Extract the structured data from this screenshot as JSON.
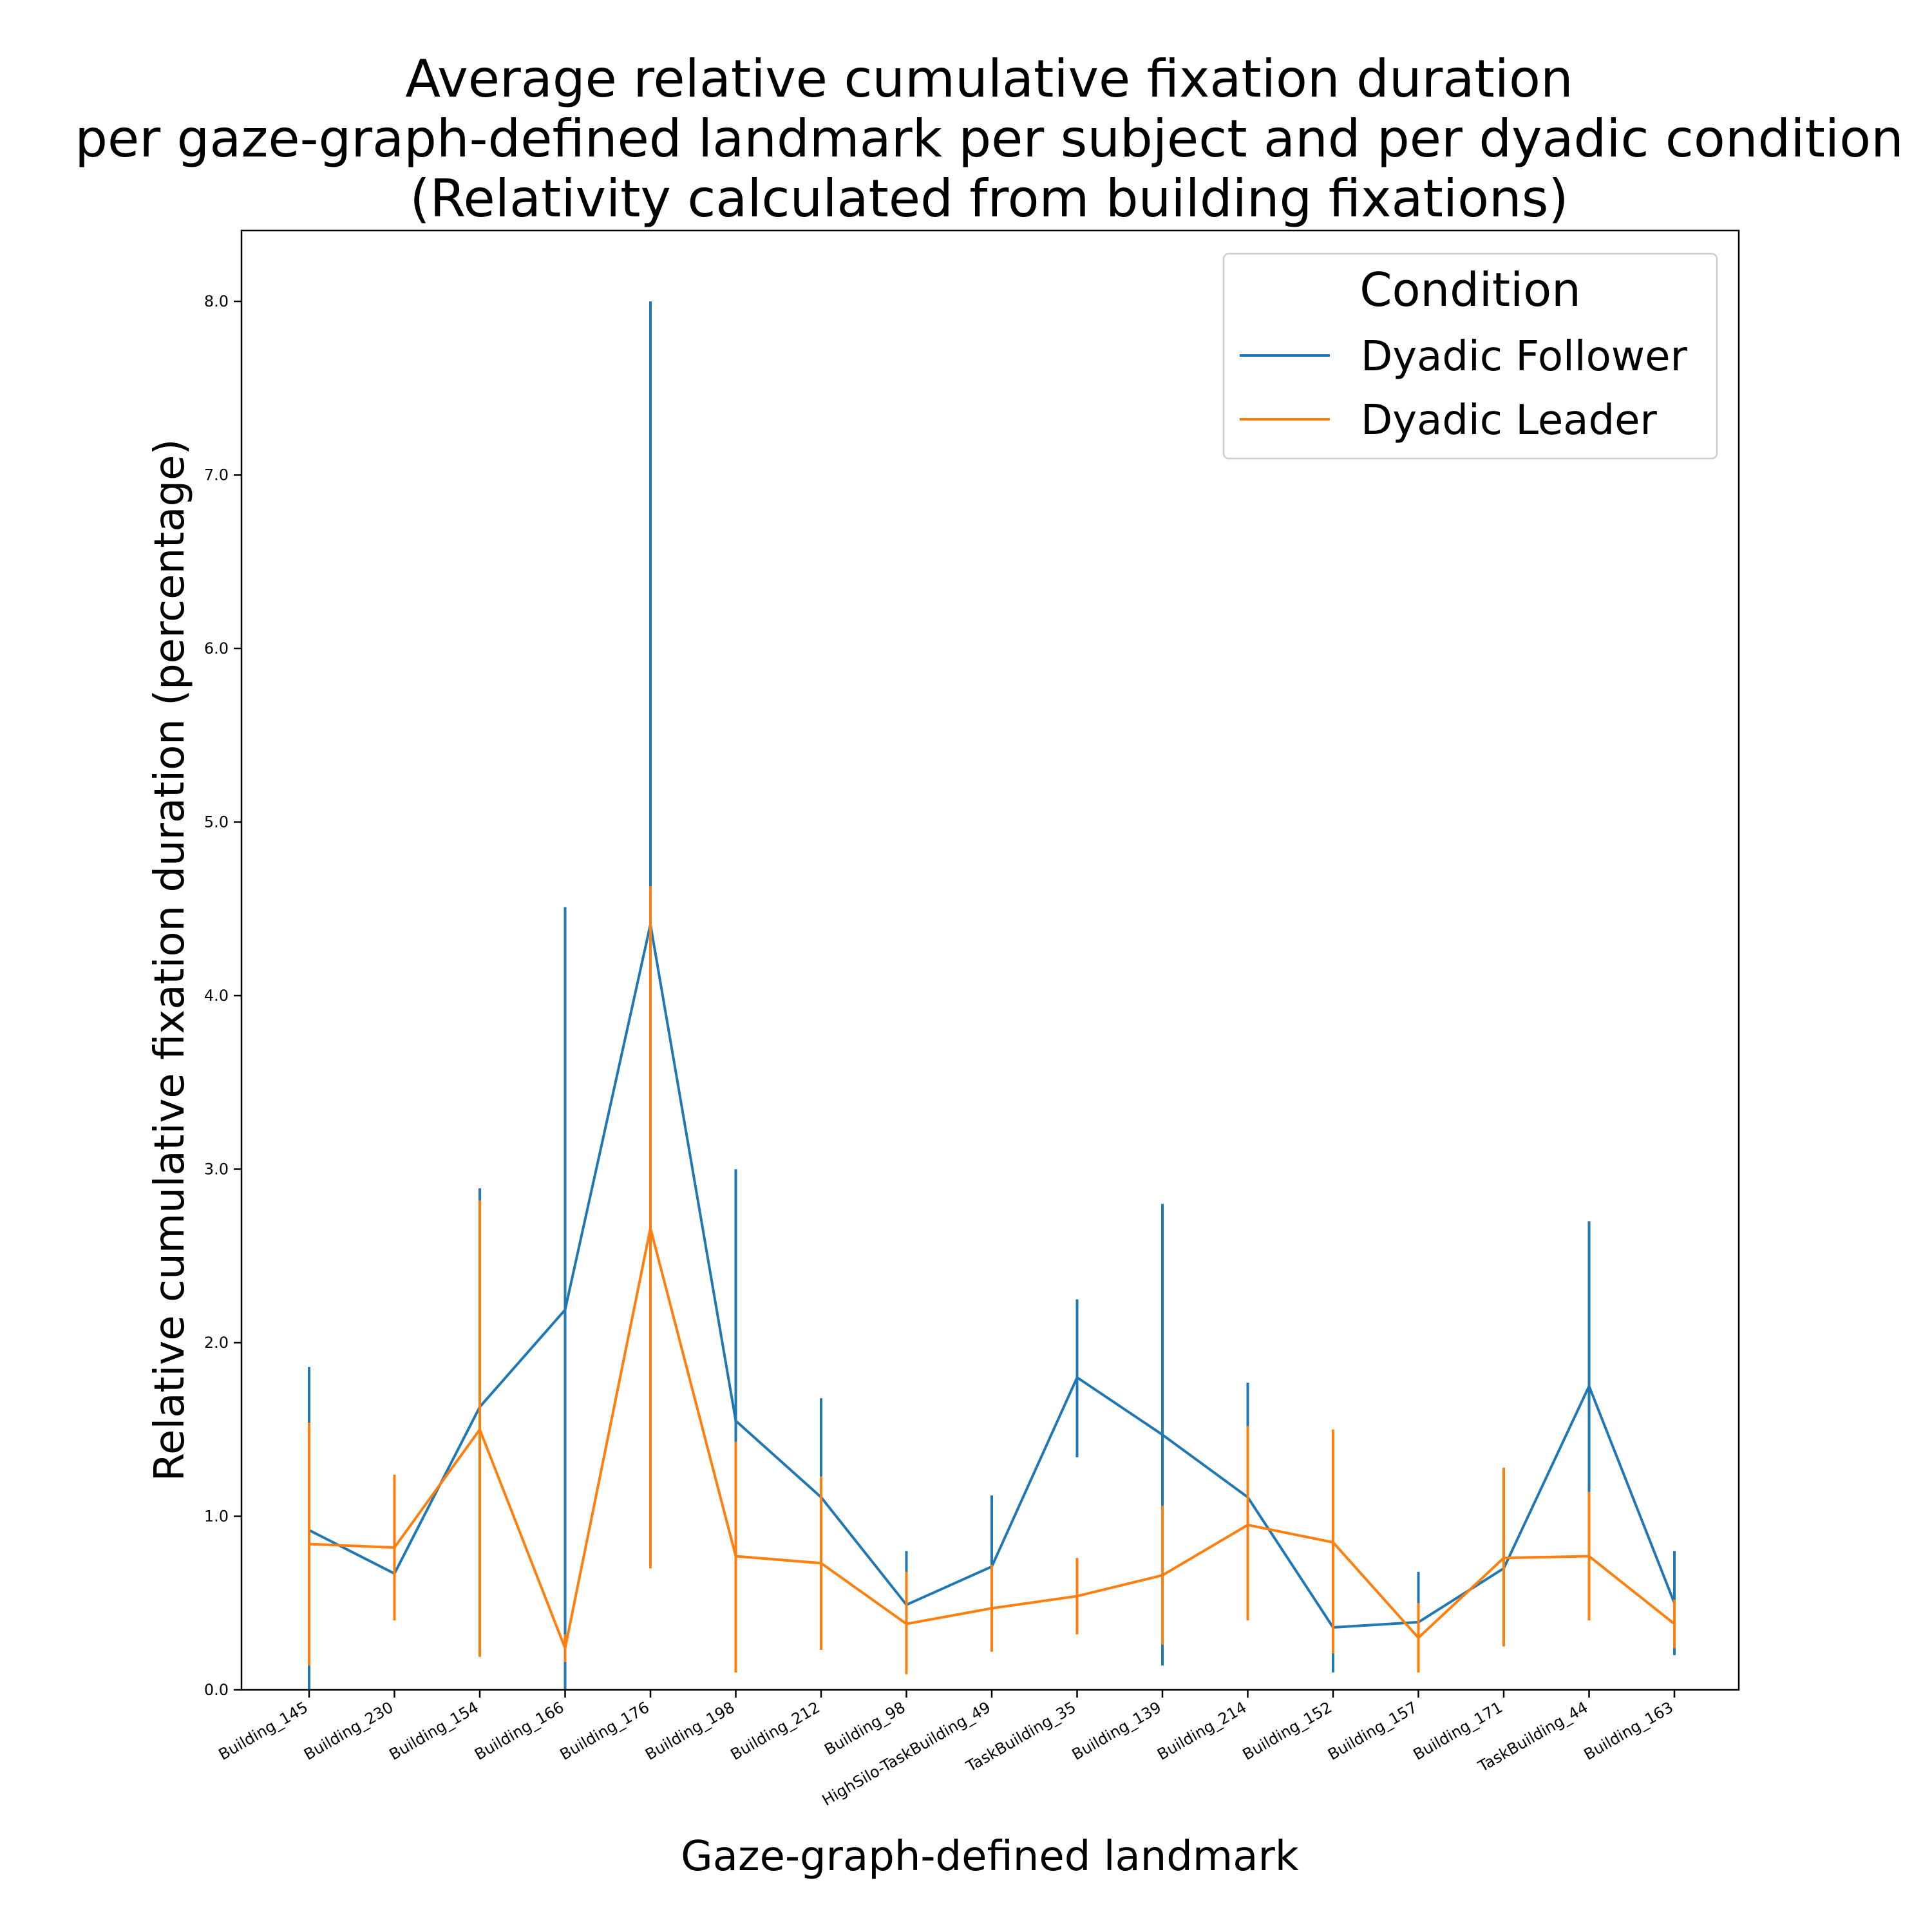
{
  "chart_data": {
    "type": "line",
    "title": [
      "Average relative cumulative fixation duration",
      "per gaze-graph-defined landmark per subject and per dyadic condition",
      "(Relativity calculated from building fixations)"
    ],
    "xlabel": "Gaze-graph-defined landmark",
    "ylabel": "Relative cumulative fixation duration (percentage)",
    "ylim": [
      0,
      8.4
    ],
    "yticks": [
      0.0,
      1.0,
      2.0,
      3.0,
      4.0,
      5.0,
      6.0,
      7.0,
      8.0
    ],
    "ytick_labels": [
      "0.0",
      "1.0",
      "2.0",
      "3.0",
      "4.0",
      "5.0",
      "6.0",
      "7.0",
      "8.0"
    ],
    "grid": false,
    "legend": {
      "title": "Condition",
      "position": "top-right"
    },
    "categories": [
      "Building_145",
      "Building_230",
      "Building_154",
      "Building_166",
      "Building_176",
      "Building_198",
      "Building_212",
      "Building_98",
      "HighSilo-TaskBuilding_49",
      "TaskBuilding_35",
      "Building_139",
      "Building_214",
      "Building_152",
      "Building_157",
      "Building_171",
      "TaskBuilding_44",
      "Building_163"
    ],
    "series": [
      {
        "name": "Dyadic Follower",
        "color": "#1f77b4",
        "values": [
          0.92,
          0.67,
          1.63,
          2.19,
          4.41,
          1.55,
          1.11,
          0.49,
          0.71,
          1.8,
          1.47,
          1.11,
          0.36,
          0.39,
          0.7,
          1.75,
          0.5
        ],
        "error_low": [
          0.0,
          0.67,
          0.38,
          0.0,
          0.8,
          0.1,
          0.55,
          0.2,
          0.3,
          1.34,
          0.14,
          0.45,
          0.1,
          0.1,
          0.4,
          0.85,
          0.2
        ],
        "error_high": [
          1.86,
          0.67,
          2.89,
          4.51,
          8.0,
          3.0,
          1.68,
          0.8,
          1.12,
          2.25,
          2.8,
          1.77,
          0.62,
          0.68,
          1.0,
          2.7,
          0.8
        ]
      },
      {
        "name": "Dyadic Leader",
        "color": "#ff7f0e",
        "values": [
          0.84,
          0.82,
          1.5,
          0.24,
          2.66,
          0.77,
          0.73,
          0.38,
          0.47,
          0.54,
          0.66,
          0.95,
          0.85,
          0.3,
          0.76,
          0.77,
          0.38
        ],
        "error_low": [
          0.14,
          0.4,
          0.19,
          0.16,
          0.7,
          0.1,
          0.23,
          0.09,
          0.22,
          0.32,
          0.26,
          0.4,
          0.21,
          0.1,
          0.25,
          0.4,
          0.24
        ],
        "error_high": [
          1.54,
          1.24,
          2.82,
          0.32,
          4.63,
          1.43,
          1.23,
          0.68,
          0.72,
          0.76,
          1.06,
          1.52,
          1.5,
          0.5,
          1.28,
          1.14,
          0.52
        ]
      }
    ]
  }
}
